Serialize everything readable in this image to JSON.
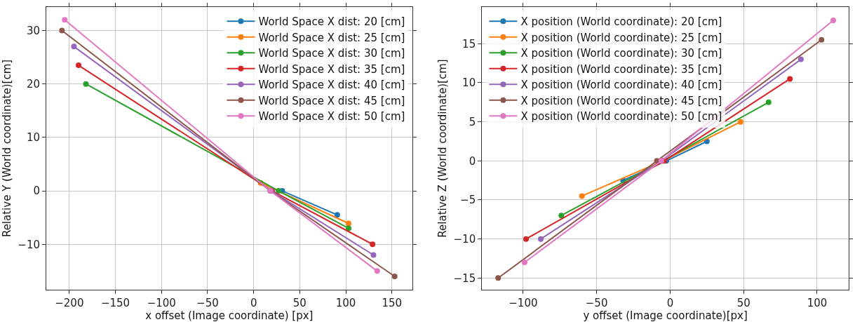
{
  "chart_data": [
    {
      "type": "line",
      "xlabel": "x offset (Image coordinate) [px]",
      "ylabel": "Relative Y (World coordinate)[cm]",
      "xlim": [
        -225,
        172
      ],
      "ylim": [
        -18.5,
        34.4
      ],
      "xticks": [
        -200,
        -150,
        -100,
        -50,
        0,
        50,
        100,
        150
      ],
      "yticks": [
        -10,
        0,
        10,
        20,
        30
      ],
      "grid": true,
      "legend": "top right",
      "marker": "circle",
      "line_style": "solid",
      "series": [
        {
          "name": "World Space X dist: 20 [cm]",
          "color": "#1f77b4",
          "x": [
            31,
            90.7
          ],
          "values": [
            0,
            -4.5
          ]
        },
        {
          "name": "World Space X dist: 25 [cm]",
          "color": "#ff7f0e",
          "x": [
            7.5,
            103
          ],
          "values": [
            1.5,
            -6.1
          ]
        },
        {
          "name": "World Space X dist: 30 [cm]",
          "color": "#2ca02c",
          "x": [
            -182,
            27,
            103
          ],
          "values": [
            20,
            0,
            -7
          ]
        },
        {
          "name": "World Space X dist: 35 [cm]",
          "color": "#d62728",
          "x": [
            -190,
            20,
            129
          ],
          "values": [
            23.5,
            0,
            -10
          ]
        },
        {
          "name": "World Space X dist: 40 [cm]",
          "color": "#9467bd",
          "x": [
            -195,
            19,
            130
          ],
          "values": [
            27,
            0,
            -12
          ]
        },
        {
          "name": "World Space X dist: 45 [cm]",
          "color": "#8c564b",
          "x": [
            -208,
            18,
            153
          ],
          "values": [
            30,
            0,
            -16
          ]
        },
        {
          "name": "World Space X dist: 50 [cm]",
          "color": "#e377c2",
          "x": [
            -205,
            18,
            134
          ],
          "values": [
            32,
            0,
            -15
          ]
        }
      ]
    },
    {
      "type": "line",
      "xlabel": "y offset (Image coordinate)[px]",
      "ylabel": "Relative Z (World coordinate)[cm]",
      "xlim": [
        -128,
        121.5
      ],
      "ylim": [
        -16.5,
        19.7
      ],
      "xticks": [
        -100,
        -50,
        0,
        50,
        100
      ],
      "yticks": [
        -15,
        -10,
        -5,
        0,
        5,
        10,
        15
      ],
      "grid": true,
      "legend": "top left",
      "marker": "circle",
      "line_style": "solid",
      "series": [
        {
          "name": "X position (World coordinate): 20 [cm]",
          "color": "#1f77b4",
          "x": [
            -32,
            -2.6,
            25
          ],
          "values": [
            -2.5,
            0,
            2.5
          ]
        },
        {
          "name": "X position (World coordinate): 25 [cm]",
          "color": "#ff7f0e",
          "x": [
            -60,
            -5,
            48
          ],
          "values": [
            -4.5,
            0,
            5
          ]
        },
        {
          "name": "X position (World coordinate): 30 [cm]",
          "color": "#2ca02c",
          "x": [
            -74,
            -5,
            67
          ],
          "values": [
            -7,
            0,
            7.5
          ]
        },
        {
          "name": "X position (World coordinate): 35 [cm]",
          "color": "#d62728",
          "x": [
            -98,
            -4,
            81.5
          ],
          "values": [
            -10,
            0,
            10.5
          ]
        },
        {
          "name": "X position (World coordinate): 40 [cm]",
          "color": "#9467bd",
          "x": [
            -88,
            -6,
            89
          ],
          "values": [
            -10,
            0,
            13
          ]
        },
        {
          "name": "X position (World coordinate): 45 [cm]",
          "color": "#8c564b",
          "x": [
            -117,
            -9,
            103
          ],
          "values": [
            -15,
            0,
            15.5
          ]
        },
        {
          "name": "X position (World coordinate): 50 [cm]",
          "color": "#e377c2",
          "x": [
            -99,
            -6,
            111
          ],
          "values": [
            -13,
            0,
            18
          ]
        }
      ]
    }
  ]
}
